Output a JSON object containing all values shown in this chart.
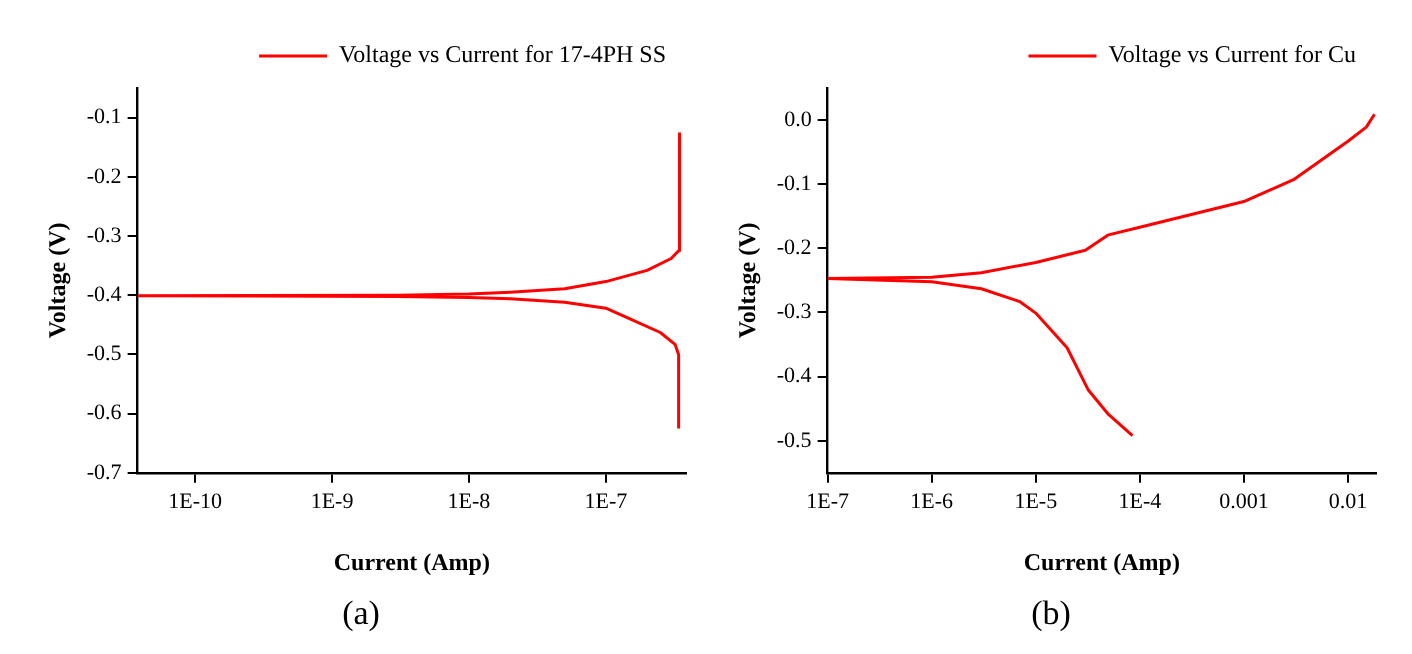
{
  "chart_data": [
    {
      "type": "line",
      "xlabel": "Current (Amp)",
      "ylabel": "Voltage (V)",
      "annotations": [
        "(a)"
      ],
      "log": "x",
      "grid": false,
      "legend": "top right",
      "marker": "none",
      "line_style": "solid",
      "xlim": [
        3.8e-11,
        3.85e-07
      ],
      "xticks": [
        {
          "value": 1e-10,
          "label": "1E-10"
        },
        {
          "value": 1e-09,
          "label": "1E-9"
        },
        {
          "value": 1e-08,
          "label": "1E-8"
        },
        {
          "value": 1e-07,
          "label": "1E-7"
        }
      ],
      "ylim": [
        -0.7,
        -0.05
      ],
      "yticks": [
        -0.7,
        -0.6,
        -0.5,
        -0.4,
        -0.3,
        -0.2,
        -0.1
      ],
      "series": [
        {
          "name": "Voltage vs Current for 17-4PH SS",
          "color": "#ff0000",
          "x": [
            3.4e-07,
            3.4e-07,
            3.2e-07,
            2.5e-07,
            1.5e-07,
            1e-07,
            5e-08,
            2e-08,
            1e-08,
            3e-09,
            3.8e-11,
            3e-09,
            1e-08,
            2e-08,
            5e-08,
            1e-07,
            2e-07,
            3e-07,
            3.4e-07,
            3.45e-07
          ],
          "values": [
            -0.625,
            -0.5,
            -0.483,
            -0.463,
            -0.44,
            -0.422,
            -0.412,
            -0.406,
            -0.404,
            -0.402,
            -0.401,
            -0.4,
            -0.398,
            -0.395,
            -0.389,
            -0.377,
            -0.358,
            -0.338,
            -0.325,
            -0.125
          ]
        }
      ]
    },
    {
      "type": "line",
      "xlabel": "Current (Amp)",
      "ylabel": "Voltage (V)",
      "annotations": [
        "(b)"
      ],
      "log": "x",
      "grid": false,
      "legend": "top right",
      "marker": "none",
      "line_style": "solid",
      "xlim": [
        1e-07,
        0.0186
      ],
      "xticks": [
        {
          "value": 1e-07,
          "label": "1E-7"
        },
        {
          "value": 1e-06,
          "label": "1E-6"
        },
        {
          "value": 1e-05,
          "label": "1E-5"
        },
        {
          "value": 0.0001,
          "label": "1E-4"
        },
        0.001,
        0.01
      ],
      "ylim": [
        -0.55,
        0.05
      ],
      "yticks": [
        {
          "value": -0.5,
          "label": "-0.5"
        },
        {
          "value": -0.4,
          "label": "-0.4"
        },
        {
          "value": -0.3,
          "label": "-0.3"
        },
        {
          "value": -0.2,
          "label": "-0.2"
        },
        {
          "value": -0.1,
          "label": "-0.1"
        },
        {
          "value": 0,
          "label": "0.0"
        }
      ],
      "series": [
        {
          "name": "Voltage vs Current for Cu",
          "color": "#ff0000",
          "x": [
            8.5e-05,
            5e-05,
            3.2e-05,
            2e-05,
            1e-05,
            7e-06,
            3e-06,
            1e-06,
            1e-07,
            1e-06,
            3e-06,
            1e-05,
            3e-05,
            5e-05,
            0.0001,
            0.001,
            0.003,
            0.01,
            0.015,
            0.018
          ],
          "values": [
            -0.492,
            -0.459,
            -0.421,
            -0.355,
            -0.301,
            -0.283,
            -0.263,
            -0.252,
            -0.247,
            -0.245,
            -0.238,
            -0.222,
            -0.203,
            -0.179,
            -0.167,
            -0.127,
            -0.093,
            -0.033,
            -0.011,
            0.009
          ]
        }
      ]
    }
  ]
}
